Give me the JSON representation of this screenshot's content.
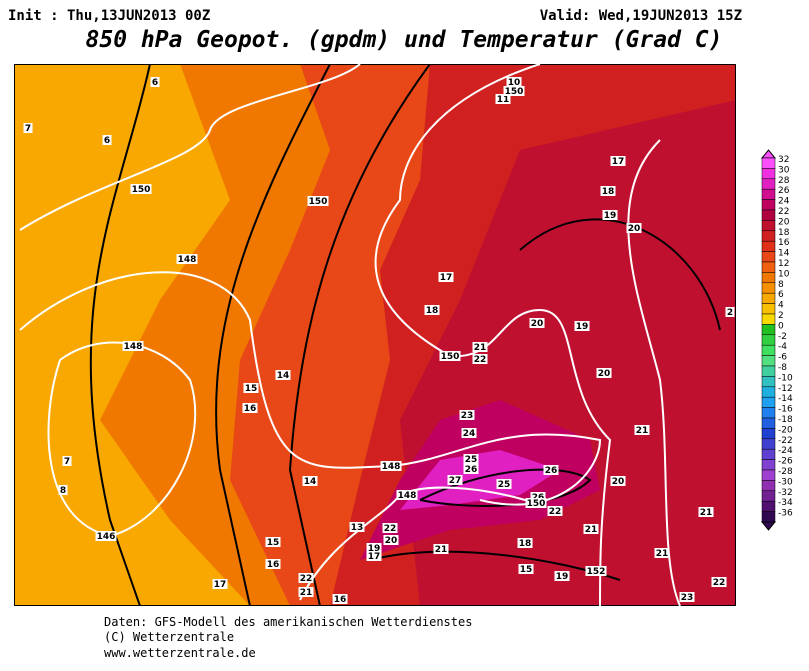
{
  "header": {
    "init": "Init : Thu,13JUN2013 00Z",
    "valid": "Valid: Wed,19JUN2013 15Z",
    "title": "850 hPa Geopot. (gpdm) und Temperatur (Grad C)"
  },
  "legend": {
    "values": [
      32,
      30,
      28,
      26,
      24,
      22,
      20,
      18,
      16,
      14,
      12,
      10,
      8,
      6,
      4,
      2,
      0,
      -2,
      -4,
      -6,
      -8,
      -10,
      -12,
      -14,
      -16,
      -18,
      -20,
      -22,
      -24,
      -26,
      -28,
      -30,
      -32,
      -34,
      -36
    ],
    "colors": [
      "#ff50ff",
      "#f030e0",
      "#e020c0",
      "#d01090",
      "#c00060",
      "#b00040",
      "#c01030",
      "#d02020",
      "#e03018",
      "#e84818",
      "#f06010",
      "#f07800",
      "#f89000",
      "#f8a800",
      "#f8c000",
      "#f8d800",
      "#20c020",
      "#30d040",
      "#40e060",
      "#50e080",
      "#40d0a0",
      "#30c0c0",
      "#20b0e0",
      "#20a0f0",
      "#2080f0",
      "#2060e0",
      "#2040d0",
      "#4040d0",
      "#6040d0",
      "#8040d0",
      "#a040d0",
      "#9030b0",
      "#702090",
      "#501070",
      "#300850"
    ]
  },
  "contour_labels": {
    "temperature": [
      6,
      7,
      6,
      7,
      8,
      11,
      10,
      17,
      18,
      19,
      20,
      17,
      18,
      20,
      19,
      21,
      22,
      20,
      2,
      14,
      15,
      16,
      23,
      24,
      21,
      25,
      26,
      27,
      25,
      26,
      20,
      26,
      22,
      21,
      14,
      13,
      22,
      20,
      19,
      17,
      21,
      18,
      21,
      21,
      15,
      19,
      15,
      16,
      17,
      22,
      21,
      16,
      22,
      23
    ],
    "geopotential": [
      150,
      150,
      150,
      148,
      148,
      150,
      148,
      148,
      146,
      150,
      152
    ]
  },
  "footer": {
    "source": "Daten: GFS-Modell des amerikanischen Wetterdienstes",
    "copyright": "(C) Wetterzentrale",
    "url": "www.wetterzentrale.de"
  }
}
